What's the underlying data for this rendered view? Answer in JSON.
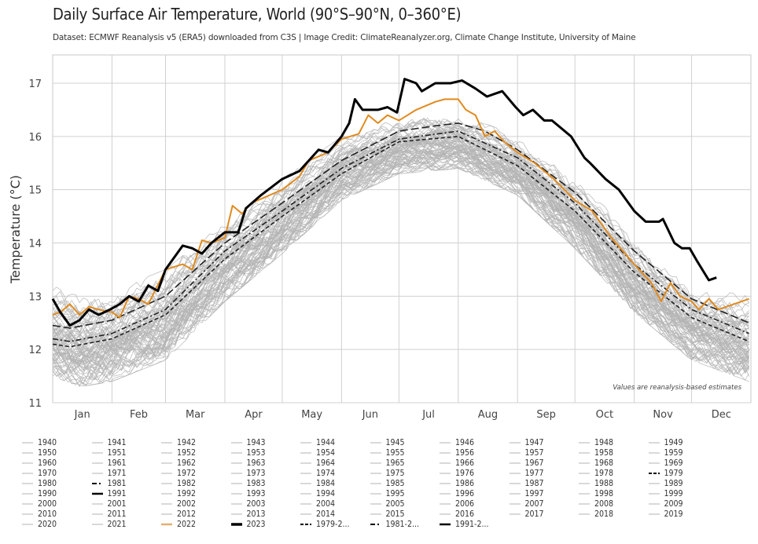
{
  "chart_data": {
    "type": "line",
    "title": "Daily Surface Air Temperature, World (90°S–90°N, 0–360°E)",
    "subtitle": "Dataset: ECMWF Reanalysis v5 (ERA5) downloaded from C3S | Image Credit: ClimateReanalyzer.org, Climate Change Institute, University of Maine",
    "ylabel": "Temperature (°C)",
    "xlabel": "",
    "ylim": [
      11,
      17.5
    ],
    "yticks": [
      11,
      12,
      13,
      14,
      15,
      16,
      17
    ],
    "xticks": [
      "Jan",
      "Feb",
      "Mar",
      "Apr",
      "May",
      "Jun",
      "Jul",
      "Aug",
      "Sep",
      "Oct",
      "Nov",
      "Dec"
    ],
    "grid": true,
    "legend_position": "bottom",
    "annotation": "Values are reanalysis-based estimates",
    "colors": {
      "historical": "#b4b4b4",
      "y2022": "#e08a1e",
      "y2023": "#000000",
      "climatology": "#222222",
      "grid": "#cccccc"
    },
    "historical_years_range": {
      "years": "1940–2021",
      "low": [
        [
          "01-01",
          11.5
        ],
        [
          "01-15",
          11.3
        ],
        [
          "02-01",
          11.4
        ],
        [
          "03-01",
          11.8
        ],
        [
          "04-01",
          12.9
        ],
        [
          "05-01",
          13.8
        ],
        [
          "06-01",
          14.8
        ],
        [
          "07-01",
          15.3
        ],
        [
          "08-01",
          15.4
        ],
        [
          "09-01",
          14.9
        ],
        [
          "10-01",
          13.9
        ],
        [
          "11-01",
          12.7
        ],
        [
          "12-01",
          11.8
        ],
        [
          "12-31",
          11.4
        ]
      ],
      "high": [
        [
          "01-01",
          13.2
        ],
        [
          "01-15",
          13.0
        ],
        [
          "02-01",
          13.1
        ],
        [
          "03-01",
          13.5
        ],
        [
          "04-01",
          14.4
        ],
        [
          "05-01",
          15.2
        ],
        [
          "06-01",
          16.0
        ],
        [
          "07-01",
          16.35
        ],
        [
          "08-01",
          16.45
        ],
        [
          "09-01",
          16.0
        ],
        [
          "10-01",
          15.3
        ],
        [
          "11-01",
          14.1
        ],
        [
          "12-01",
          13.2
        ],
        [
          "12-31",
          13.0
        ]
      ]
    },
    "series": [
      {
        "name": "1979-2...",
        "style": "short-dash",
        "points": [
          [
            "01-01",
            12.1
          ],
          [
            "01-10",
            12.05
          ],
          [
            "02-01",
            12.2
          ],
          [
            "03-01",
            12.65
          ],
          [
            "04-01",
            13.7
          ],
          [
            "05-01",
            14.5
          ],
          [
            "06-01",
            15.3
          ],
          [
            "07-01",
            15.9
          ],
          [
            "08-01",
            16.0
          ],
          [
            "09-01",
            15.45
          ],
          [
            "10-01",
            14.6
          ],
          [
            "11-01",
            13.45
          ],
          [
            "12-01",
            12.6
          ],
          [
            "12-31",
            12.15
          ]
        ]
      },
      {
        "name": "1981-2...",
        "style": "dash-dot",
        "points": [
          [
            "01-01",
            12.2
          ],
          [
            "01-10",
            12.15
          ],
          [
            "02-01",
            12.3
          ],
          [
            "03-01",
            12.75
          ],
          [
            "04-01",
            13.85
          ],
          [
            "05-01",
            14.6
          ],
          [
            "06-01",
            15.4
          ],
          [
            "07-01",
            15.95
          ],
          [
            "08-01",
            16.1
          ],
          [
            "09-01",
            15.6
          ],
          [
            "10-01",
            14.75
          ],
          [
            "11-01",
            13.6
          ],
          [
            "12-01",
            12.75
          ],
          [
            "12-31",
            12.3
          ]
        ]
      },
      {
        "name": "1991-2...",
        "style": "long-dash",
        "points": [
          [
            "01-01",
            12.45
          ],
          [
            "01-10",
            12.4
          ],
          [
            "02-01",
            12.55
          ],
          [
            "03-01",
            13.0
          ],
          [
            "04-01",
            14.0
          ],
          [
            "05-01",
            14.75
          ],
          [
            "06-01",
            15.55
          ],
          [
            "07-01",
            16.1
          ],
          [
            "07-20",
            16.2
          ],
          [
            "08-01",
            16.25
          ],
          [
            "08-15",
            16.1
          ],
          [
            "09-01",
            15.75
          ],
          [
            "10-01",
            14.95
          ],
          [
            "11-01",
            13.85
          ],
          [
            "12-01",
            12.95
          ],
          [
            "12-31",
            12.5
          ]
        ]
      },
      {
        "name": "2022",
        "style": "orange",
        "points": [
          [
            "01-01",
            12.65
          ],
          [
            "01-05",
            12.7
          ],
          [
            "01-10",
            12.85
          ],
          [
            "01-15",
            12.65
          ],
          [
            "01-20",
            12.8
          ],
          [
            "01-25",
            12.75
          ],
          [
            "02-01",
            12.7
          ],
          [
            "02-05",
            12.6
          ],
          [
            "02-10",
            13.0
          ],
          [
            "02-15",
            12.95
          ],
          [
            "02-20",
            12.85
          ],
          [
            "03-01",
            13.5
          ],
          [
            "03-10",
            13.6
          ],
          [
            "03-15",
            13.5
          ],
          [
            "03-20",
            14.05
          ],
          [
            "03-25",
            14.0
          ],
          [
            "04-01",
            14.1
          ],
          [
            "04-05",
            14.7
          ],
          [
            "04-10",
            14.55
          ],
          [
            "04-15",
            14.75
          ],
          [
            "05-01",
            15.0
          ],
          [
            "05-10",
            15.25
          ],
          [
            "05-15",
            15.55
          ],
          [
            "05-25",
            15.7
          ],
          [
            "06-01",
            15.95
          ],
          [
            "06-10",
            16.05
          ],
          [
            "06-15",
            16.4
          ],
          [
            "06-20",
            16.25
          ],
          [
            "06-25",
            16.4
          ],
          [
            "07-01",
            16.3
          ],
          [
            "07-10",
            16.5
          ],
          [
            "07-20",
            16.65
          ],
          [
            "07-25",
            16.7
          ],
          [
            "08-01",
            16.7
          ],
          [
            "08-05",
            16.5
          ],
          [
            "08-10",
            16.4
          ],
          [
            "08-15",
            16.0
          ],
          [
            "08-20",
            16.1
          ],
          [
            "08-25",
            15.9
          ],
          [
            "09-01",
            15.7
          ],
          [
            "09-10",
            15.5
          ],
          [
            "09-20",
            15.2
          ],
          [
            "10-01",
            14.8
          ],
          [
            "10-10",
            14.6
          ],
          [
            "10-20",
            14.1
          ],
          [
            "11-01",
            13.6
          ],
          [
            "11-10",
            13.25
          ],
          [
            "11-15",
            12.9
          ],
          [
            "11-20",
            13.25
          ],
          [
            "11-25",
            13.0
          ],
          [
            "12-01",
            12.9
          ],
          [
            "12-05",
            12.75
          ],
          [
            "12-10",
            12.95
          ],
          [
            "12-15",
            12.75
          ],
          [
            "12-31",
            12.95
          ]
        ]
      },
      {
        "name": "2023",
        "style": "black-thick",
        "points": [
          [
            "01-01",
            12.95
          ],
          [
            "01-05",
            12.7
          ],
          [
            "01-10",
            12.45
          ],
          [
            "01-15",
            12.55
          ],
          [
            "01-20",
            12.75
          ],
          [
            "01-25",
            12.65
          ],
          [
            "01-31",
            12.75
          ],
          [
            "02-05",
            12.85
          ],
          [
            "02-10",
            13.0
          ],
          [
            "02-15",
            12.9
          ],
          [
            "02-20",
            13.2
          ],
          [
            "02-25",
            13.1
          ],
          [
            "03-01",
            13.5
          ],
          [
            "03-10",
            13.95
          ],
          [
            "03-15",
            13.9
          ],
          [
            "03-20",
            13.8
          ],
          [
            "03-25",
            14.0
          ],
          [
            "04-01",
            14.2
          ],
          [
            "04-08",
            14.2
          ],
          [
            "04-12",
            14.65
          ],
          [
            "04-20",
            14.9
          ],
          [
            "05-01",
            15.2
          ],
          [
            "05-10",
            15.35
          ],
          [
            "05-20",
            15.75
          ],
          [
            "05-25",
            15.7
          ],
          [
            "06-01",
            16.0
          ],
          [
            "06-05",
            16.25
          ],
          [
            "06-08",
            16.7
          ],
          [
            "06-12",
            16.5
          ],
          [
            "06-20",
            16.5
          ],
          [
            "06-25",
            16.55
          ],
          [
            "06-30",
            16.45
          ],
          [
            "07-04",
            17.08
          ],
          [
            "07-10",
            17.0
          ],
          [
            "07-13",
            16.85
          ],
          [
            "07-20",
            17.0
          ],
          [
            "07-28",
            17.0
          ],
          [
            "08-03",
            17.05
          ],
          [
            "08-10",
            16.9
          ],
          [
            "08-16",
            16.75
          ],
          [
            "08-20",
            16.8
          ],
          [
            "08-24",
            16.85
          ],
          [
            "08-31",
            16.55
          ],
          [
            "09-04",
            16.4
          ],
          [
            "09-09",
            16.5
          ],
          [
            "09-15",
            16.3
          ],
          [
            "09-19",
            16.3
          ],
          [
            "09-29",
            16.0
          ],
          [
            "10-06",
            15.6
          ],
          [
            "10-09",
            15.5
          ],
          [
            "10-17",
            15.2
          ],
          [
            "10-24",
            15.0
          ],
          [
            "11-01",
            14.6
          ],
          [
            "11-07",
            14.4
          ],
          [
            "11-14",
            14.4
          ],
          [
            "11-16",
            14.45
          ],
          [
            "11-22",
            14.0
          ],
          [
            "11-26",
            13.9
          ],
          [
            "11-30",
            13.9
          ],
          [
            "12-04",
            13.65
          ],
          [
            "12-10",
            13.3
          ],
          [
            "12-14",
            13.35
          ]
        ]
      }
    ],
    "legend": [
      "1940",
      "1941",
      "1942",
      "1943",
      "1944",
      "1945",
      "1946",
      "1947",
      "1948",
      "1949",
      "1950",
      "1951",
      "1952",
      "1953",
      "1954",
      "1955",
      "1956",
      "1957",
      "1958",
      "1959",
      "1960",
      "1961",
      "1962",
      "1963",
      "1964",
      "1965",
      "1966",
      "1967",
      "1968",
      "1969",
      "1970",
      "1971",
      "1972",
      "1973",
      "1974",
      "1975",
      "1976",
      "1977",
      "1978",
      "1979",
      "1980",
      "1981",
      "1982",
      "1983",
      "1984",
      "1985",
      "1986",
      "1987",
      "1988",
      "1989",
      "1990",
      "1991",
      "1992",
      "1993",
      "1994",
      "1995",
      "1996",
      "1997",
      "1998",
      "1999",
      "2000",
      "2001",
      "2002",
      "2003",
      "2004",
      "2005",
      "2006",
      "2007",
      "2008",
      "2009",
      "2010",
      "2011",
      "2012",
      "2013",
      "2014",
      "2015",
      "2016",
      "2017",
      "2018",
      "2019",
      "2020",
      "2021",
      "2022",
      "2023",
      "1979-2...",
      "1981-2...",
      "1991-2..."
    ]
  }
}
